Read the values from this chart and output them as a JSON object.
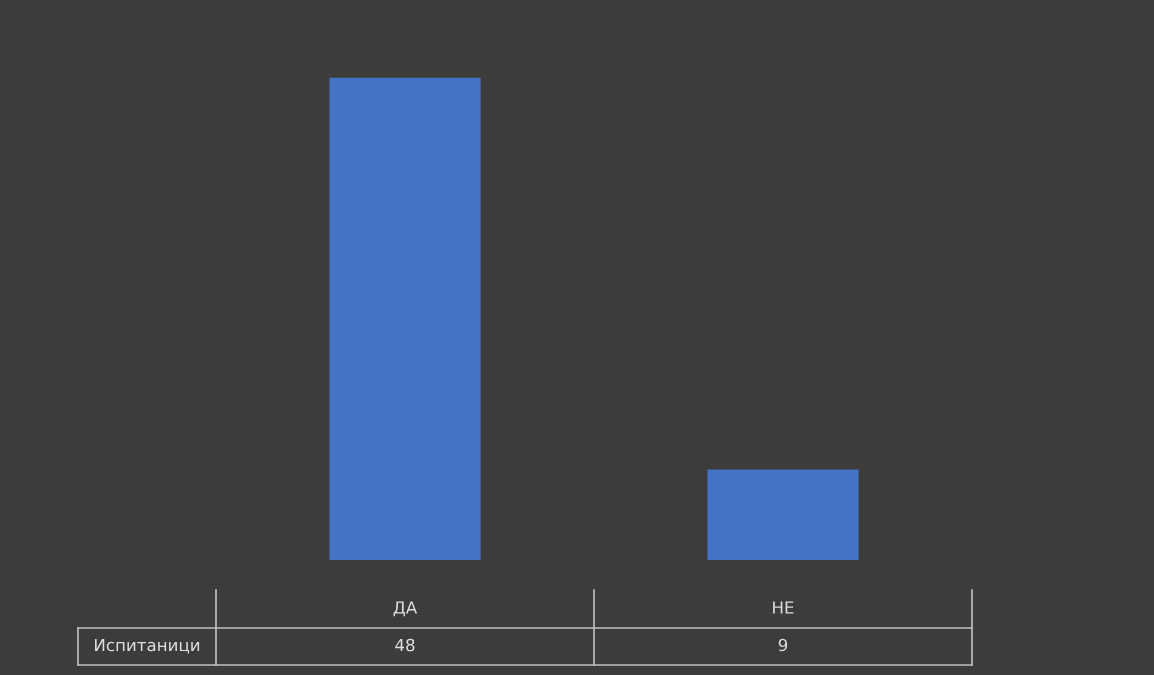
{
  "chart_data": {
    "type": "bar",
    "categories": [
      "ДА",
      "НЕ"
    ],
    "series": [
      {
        "name": "Испитаници",
        "color": "#4472c4",
        "values": [
          48,
          9
        ]
      }
    ],
    "data_labels": true,
    "legend": false
  }
}
